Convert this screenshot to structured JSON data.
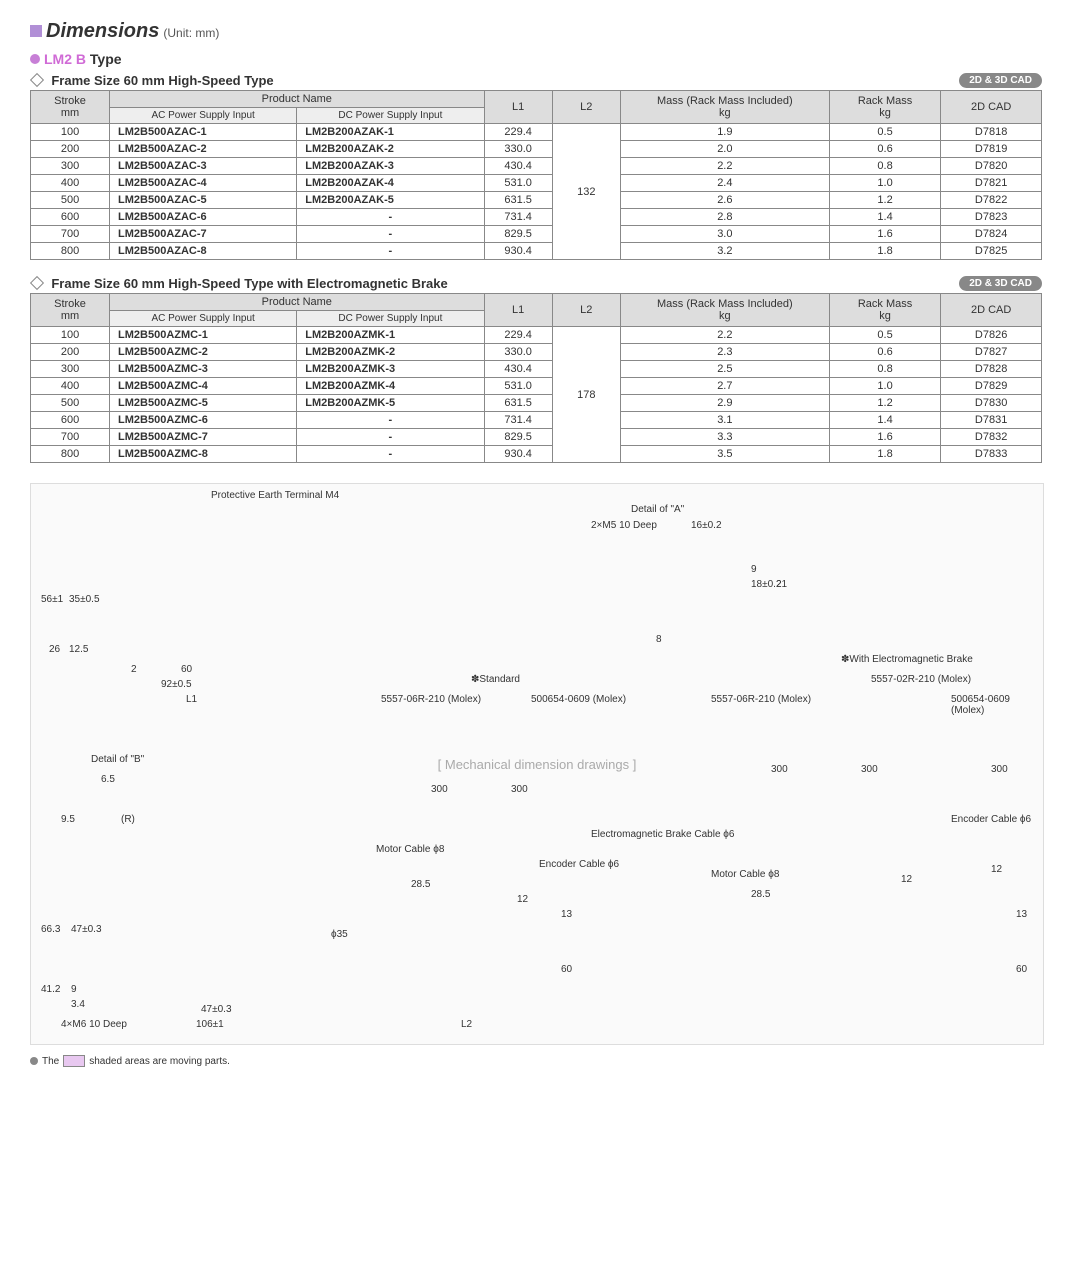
{
  "header": {
    "title": "Dimensions",
    "unit": "(Unit: mm)"
  },
  "product_line": {
    "prefix": "LM2 B",
    "suffix": " Type"
  },
  "badge_text": "2D & 3D CAD",
  "section1": {
    "title": "Frame Size 60 mm High-Speed Type",
    "l2": "132",
    "headers": {
      "stroke": "Stroke\nmm",
      "product_name": "Product Name",
      "ac": "AC Power Supply Input",
      "dc": "DC Power Supply Input",
      "l1": "L1",
      "l2": "L2",
      "mass": "Mass (Rack Mass Included)\nkg",
      "rack_mass": "Rack Mass\nkg",
      "cad": "2D CAD"
    },
    "rows": [
      {
        "stroke": "100",
        "ac": "LM2B500AZAC-1",
        "dc": "LM2B200AZAK-1",
        "l1": "229.4",
        "mass": "1.9",
        "rack": "0.5",
        "cad": "D7818"
      },
      {
        "stroke": "200",
        "ac": "LM2B500AZAC-2",
        "dc": "LM2B200AZAK-2",
        "l1": "330.0",
        "mass": "2.0",
        "rack": "0.6",
        "cad": "D7819"
      },
      {
        "stroke": "300",
        "ac": "LM2B500AZAC-3",
        "dc": "LM2B200AZAK-3",
        "l1": "430.4",
        "mass": "2.2",
        "rack": "0.8",
        "cad": "D7820"
      },
      {
        "stroke": "400",
        "ac": "LM2B500AZAC-4",
        "dc": "LM2B200AZAK-4",
        "l1": "531.0",
        "mass": "2.4",
        "rack": "1.0",
        "cad": "D7821"
      },
      {
        "stroke": "500",
        "ac": "LM2B500AZAC-5",
        "dc": "LM2B200AZAK-5",
        "l1": "631.5",
        "mass": "2.6",
        "rack": "1.2",
        "cad": "D7822"
      },
      {
        "stroke": "600",
        "ac": "LM2B500AZAC-6",
        "dc": "-",
        "l1": "731.4",
        "mass": "2.8",
        "rack": "1.4",
        "cad": "D7823"
      },
      {
        "stroke": "700",
        "ac": "LM2B500AZAC-7",
        "dc": "-",
        "l1": "829.5",
        "mass": "3.0",
        "rack": "1.6",
        "cad": "D7824"
      },
      {
        "stroke": "800",
        "ac": "LM2B500AZAC-8",
        "dc": "-",
        "l1": "930.4",
        "mass": "3.2",
        "rack": "1.8",
        "cad": "D7825"
      }
    ]
  },
  "section2": {
    "title": "Frame Size 60 mm High-Speed Type with Electromagnetic Brake",
    "l2": "178",
    "rows": [
      {
        "stroke": "100",
        "ac": "LM2B500AZMC-1",
        "dc": "LM2B200AZMK-1",
        "l1": "229.4",
        "mass": "2.2",
        "rack": "0.5",
        "cad": "D7826"
      },
      {
        "stroke": "200",
        "ac": "LM2B500AZMC-2",
        "dc": "LM2B200AZMK-2",
        "l1": "330.0",
        "mass": "2.3",
        "rack": "0.6",
        "cad": "D7827"
      },
      {
        "stroke": "300",
        "ac": "LM2B500AZMC-3",
        "dc": "LM2B200AZMK-3",
        "l1": "430.4",
        "mass": "2.5",
        "rack": "0.8",
        "cad": "D7828"
      },
      {
        "stroke": "400",
        "ac": "LM2B500AZMC-4",
        "dc": "LM2B200AZMK-4",
        "l1": "531.0",
        "mass": "2.7",
        "rack": "1.0",
        "cad": "D7829"
      },
      {
        "stroke": "500",
        "ac": "LM2B500AZMC-5",
        "dc": "LM2B200AZMK-5",
        "l1": "631.5",
        "mass": "2.9",
        "rack": "1.2",
        "cad": "D7830"
      },
      {
        "stroke": "600",
        "ac": "LM2B500AZMC-6",
        "dc": "-",
        "l1": "731.4",
        "mass": "3.1",
        "rack": "1.4",
        "cad": "D7831"
      },
      {
        "stroke": "700",
        "ac": "LM2B500AZMC-7",
        "dc": "-",
        "l1": "829.5",
        "mass": "3.3",
        "rack": "1.6",
        "cad": "D7832"
      },
      {
        "stroke": "800",
        "ac": "LM2B500AZMC-8",
        "dc": "-",
        "l1": "930.4",
        "mass": "3.5",
        "rack": "1.8",
        "cad": "D7833"
      }
    ]
  },
  "diagram": {
    "labels": {
      "protective_earth": "Protective Earth Terminal M4",
      "detail_a": "Detail of \"A\"",
      "detail_b": "Detail of \"B\"",
      "m5": "2×M5 10 Deep",
      "m6": "4×M6 10 Deep",
      "standard": "✽Standard",
      "with_brake": "✽With Electromagnetic Brake",
      "conn1": "5557-06R-210 (Molex)",
      "conn2": "500654-0609 (Molex)",
      "conn3": "5557-02R-210 (Molex)",
      "motor_cable": "Motor Cable ϕ8",
      "encoder_cable": "Encoder Cable ϕ6",
      "brake_cable": "Electromagnetic Brake Cable ϕ6",
      "d56": "56±1",
      "d35": "35±0.5",
      "d26": "26",
      "d125": "12.5",
      "d2": "2",
      "d60": "60",
      "d92": "92±0.5",
      "dL1": "L1",
      "dL2": "L2",
      "d16": "16±0.2",
      "d9": "9",
      "d18": "18±0.2",
      "d21": "21",
      "d8": "8",
      "d65": "6.5",
      "d95": "9.5",
      "dR": "(R)",
      "d663": "66.3",
      "d47": "47±0.3",
      "d412": "41.2",
      "d34": "3.4",
      "d106": "106±1",
      "d300": "300",
      "d285": "28.5",
      "d12": "12",
      "d13": "13",
      "d35b": "ϕ35"
    }
  },
  "footnote": {
    "prefix": "The",
    "suffix": "shaded areas are moving parts."
  }
}
